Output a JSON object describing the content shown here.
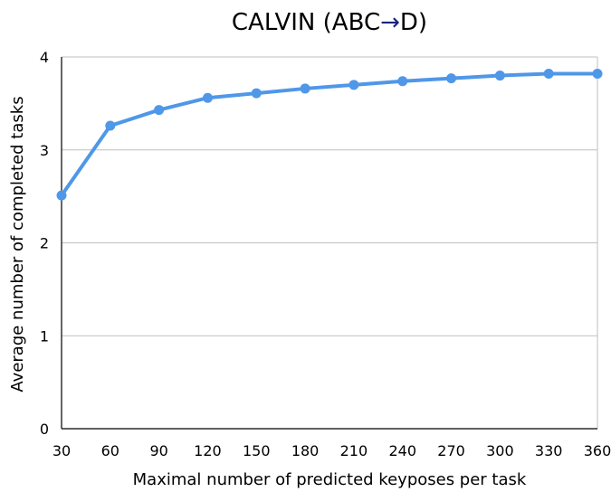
{
  "chart_data": {
    "type": "line",
    "title_prefix": "CALVIN (ABC",
    "title_arrow": "→",
    "title_suffix": "D)",
    "xlabel": "Maximal number of predicted keyposes per task",
    "ylabel": "Average number of completed tasks",
    "x": [
      30,
      60,
      90,
      120,
      150,
      180,
      210,
      240,
      270,
      300,
      330,
      360
    ],
    "x_tick_labels": [
      "30",
      "60",
      "90",
      "120",
      "150",
      "180",
      "210",
      "240",
      "270",
      "300",
      "330",
      "360"
    ],
    "y_ticks": [
      0,
      1,
      2,
      3,
      4
    ],
    "y_tick_labels": [
      "0",
      "1",
      "2",
      "3",
      "4"
    ],
    "xlim": [
      30,
      360
    ],
    "ylim": [
      0,
      4
    ],
    "grid": "horizontal",
    "series": [
      {
        "values": [
          2.51,
          3.26,
          3.43,
          3.56,
          3.61,
          3.66,
          3.7,
          3.74,
          3.77,
          3.8,
          3.82,
          3.82
        ],
        "color": "#4f97e8"
      }
    ],
    "colors": {
      "line": "#4f97e8",
      "grid": "#bfbfbf",
      "axis": "#000000",
      "arrow": "#1a237e"
    }
  }
}
